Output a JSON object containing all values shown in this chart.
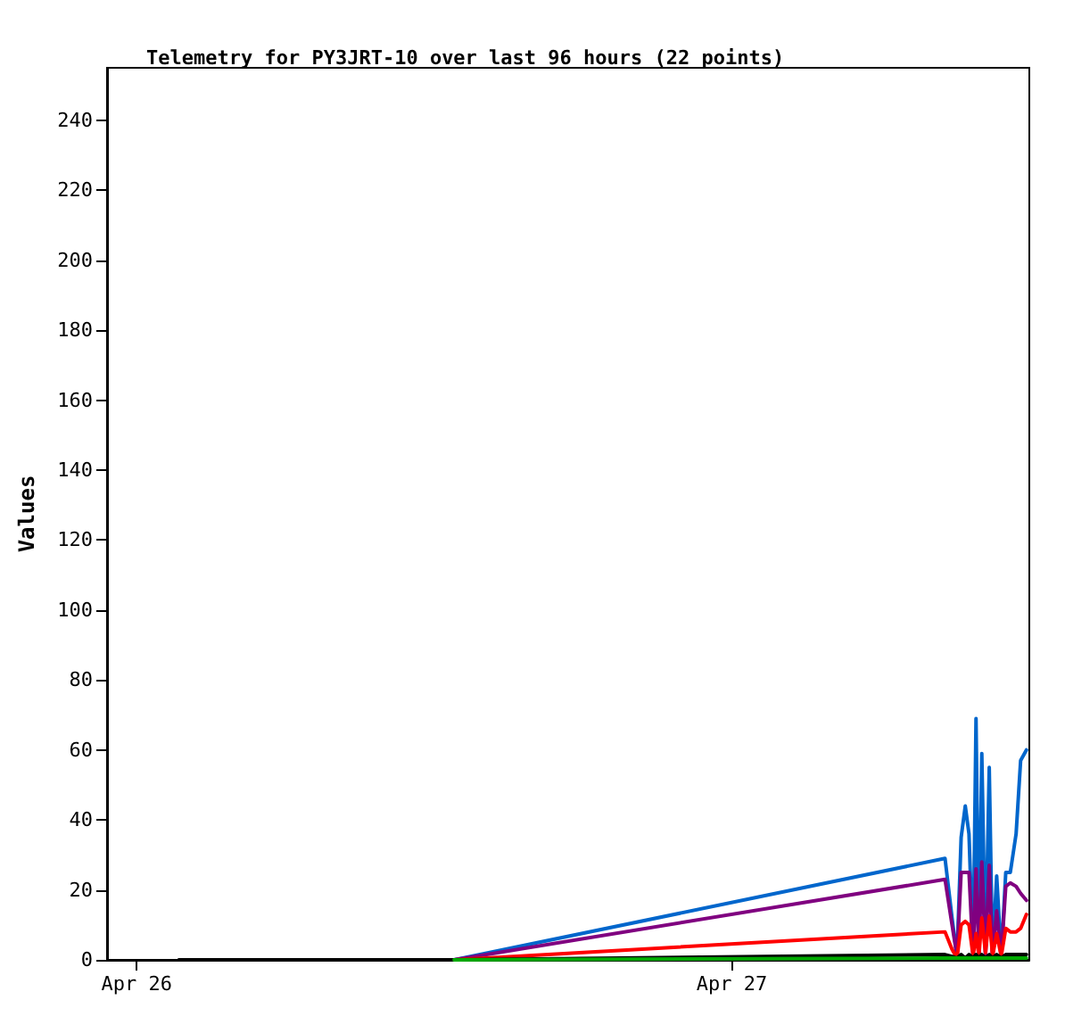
{
  "chart_data": {
    "type": "line",
    "title": "Telemetry for PY3JRT-10 over last 96 hours (22 points)",
    "ylabel": "Values",
    "x": [
      "--04-26T01:42",
      "--04-26T12:48",
      "--04-27T08:36",
      "--04-27T08:53",
      "--04-27T09:05",
      "--04-27T09:15",
      "--04-27T09:25",
      "--04-27T09:34",
      "--04-27T09:44",
      "--04-27T09:51",
      "--04-27T09:58",
      "--04-27T10:05",
      "--04-27T10:14",
      "--04-27T10:23",
      "--04-27T10:31",
      "--04-27T10:41",
      "--04-27T10:52",
      "--04-27T11:03",
      "--04-27T11:14",
      "--04-27T11:28",
      "--04-27T11:39",
      "--04-27T11:53"
    ],
    "series": [
      {
        "color": "#0066cc",
        "values": [
          null,
          0,
          29,
          12,
          1,
          35,
          44,
          36,
          1,
          69,
          1,
          59,
          1,
          55,
          1,
          24,
          1,
          25,
          25,
          36,
          57,
          60
        ]
      },
      {
        "color": "#800080",
        "values": [
          null,
          0,
          23,
          10,
          1,
          25,
          25,
          25,
          1,
          26,
          1,
          28,
          1,
          27,
          1,
          14,
          1,
          21,
          22,
          21,
          19,
          17
        ]
      },
      {
        "color": "#ff0000",
        "values": [
          null,
          0,
          8,
          3,
          0.5,
          10,
          11,
          10,
          1,
          7.5,
          1,
          12,
          2,
          12.5,
          1,
          7.5,
          1,
          9,
          8,
          8,
          9,
          13
        ]
      },
      {
        "color": "#000000",
        "values": [
          0,
          0,
          1.5,
          1,
          0.5,
          1.5,
          0.5,
          1.5,
          0.5,
          1.5,
          0.5,
          1.5,
          0.5,
          1.5,
          0.5,
          1.5,
          0.5,
          1.5,
          1.5,
          1.5,
          1.5,
          1.5
        ]
      },
      {
        "color": "#00aa00",
        "values": [
          null,
          0,
          0.5,
          0.5,
          0.5,
          0.5,
          0.5,
          0.5,
          0.5,
          0.5,
          0.5,
          0.5,
          0.5,
          0.5,
          0.5,
          0.5,
          0.5,
          0.5,
          0.5,
          0.5,
          0.5,
          0.5
        ]
      }
    ],
    "xlim": [
      "--04-25T22:48",
      "--04-27T12:00"
    ],
    "xticks": [
      {
        "value": "--04-26",
        "label": "Apr 26"
      },
      {
        "value": "--04-27",
        "label": "Apr 27"
      }
    ],
    "ylim": [
      0,
      255
    ],
    "yticks": [
      0,
      20,
      40,
      60,
      80,
      100,
      120,
      140,
      160,
      180,
      200,
      220,
      240
    ],
    "grid": false,
    "marker": "none",
    "line_style": "solid"
  }
}
